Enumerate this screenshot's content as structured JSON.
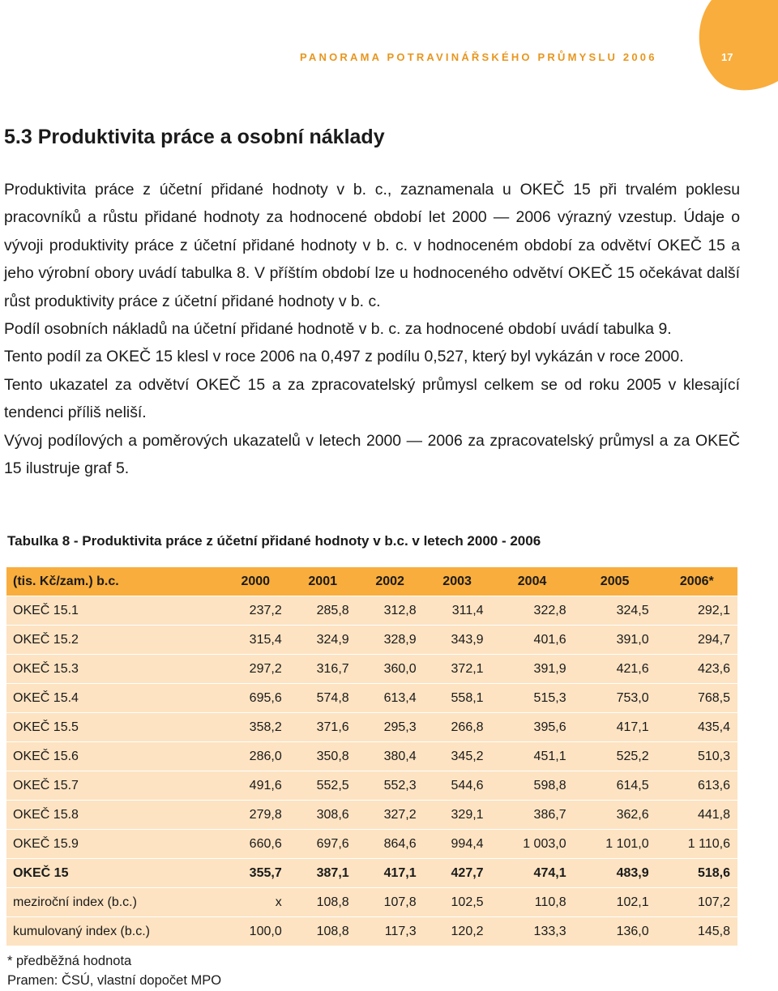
{
  "header": {
    "running_title": "PANORAMA POTRAVINÁŘSKÉHO PRŮMYSLU 2006",
    "page_number": "17"
  },
  "heading": "5.3 Produktivita práce a osobní náklady",
  "paragraphs": [
    "Produktivita práce z účetní přidané hodnoty v b. c., zaznamenala u OKEČ 15 při trvalém poklesu pracovníků a růstu přidané hodnoty za hodnocené období let 2000 — 2006 výrazný vzestup. Údaje o vývoji produktivity práce z účetní přidané hodnoty v b. c. v hodnoceném období za odvětví OKEČ 15 a jeho výrobní obory uvádí tabulka 8. V příštím období lze u hodnoceného odvětví OKEČ 15 očekávat další růst produktivity práce z účetní přidané hodnoty v b. c.",
    "Podíl osobních nákladů na účetní přidané hodnotě v b. c. za hodnocené období uvádí tabulka 9.",
    "Tento podíl za OKEČ 15 klesl v roce 2006 na 0,497 z podílu 0,527, který byl vykázán v roce 2000.",
    "Tento ukazatel za odvětví OKEČ 15 a za zpracovatelský průmysl celkem se od roku 2005 v klesající tendenci příliš neliší.",
    "Vývoj podílových a poměrových ukazatelů v letech 2000 — 2006 za zpracovatelský průmysl a za OKEČ 15 ilustruje graf 5."
  ],
  "table": {
    "title": "Tabulka 8 - Produktivita práce z účetní přidané hodnoty v b.c. v letech 2000 - 2006",
    "header": [
      "(tis. Kč/zam.) b.c.",
      "2000",
      "2001",
      "2002",
      "2003",
      "2004",
      "2005",
      "2006*"
    ],
    "rows": [
      [
        "OKEČ 15.1",
        "237,2",
        "285,8",
        "312,8",
        "311,4",
        "322,8",
        "324,5",
        "292,1"
      ],
      [
        "OKEČ 15.2",
        "315,4",
        "324,9",
        "328,9",
        "343,9",
        "401,6",
        "391,0",
        "294,7"
      ],
      [
        "OKEČ 15.3",
        "297,2",
        "316,7",
        "360,0",
        "372,1",
        "391,9",
        "421,6",
        "423,6"
      ],
      [
        "OKEČ 15.4",
        "695,6",
        "574,8",
        "613,4",
        "558,1",
        "515,3",
        "753,0",
        "768,5"
      ],
      [
        "OKEČ 15.5",
        "358,2",
        "371,6",
        "295,3",
        "266,8",
        "395,6",
        "417,1",
        "435,4"
      ],
      [
        "OKEČ 15.6",
        "286,0",
        "350,8",
        "380,4",
        "345,2",
        "451,1",
        "525,2",
        "510,3"
      ],
      [
        "OKEČ 15.7",
        "491,6",
        "552,5",
        "552,3",
        "544,6",
        "598,8",
        "614,5",
        "613,6"
      ],
      [
        "OKEČ 15.8",
        "279,8",
        "308,6",
        "327,2",
        "329,1",
        "386,7",
        "362,6",
        "441,8"
      ],
      [
        "OKEČ 15.9",
        "660,6",
        "697,6",
        "864,6",
        "994,4",
        "1 003,0",
        "1 101,0",
        "1 110,6"
      ],
      [
        "OKEČ 15",
        "355,7",
        "387,1",
        "417,1",
        "427,7",
        "474,1",
        "483,9",
        "518,6"
      ],
      [
        "meziroční index (b.c.)",
        "x",
        "108,8",
        "107,8",
        "102,5",
        "110,8",
        "102,1",
        "107,2"
      ],
      [
        "kumulovaný index (b.c.)",
        "100,0",
        "108,8",
        "117,3",
        "120,2",
        "133,3",
        "136,0",
        "145,8"
      ]
    ]
  },
  "footnotes": [
    "* předběžná hodnota",
    "Pramen: ČSÚ, vlastní dopočet MPO"
  ]
}
